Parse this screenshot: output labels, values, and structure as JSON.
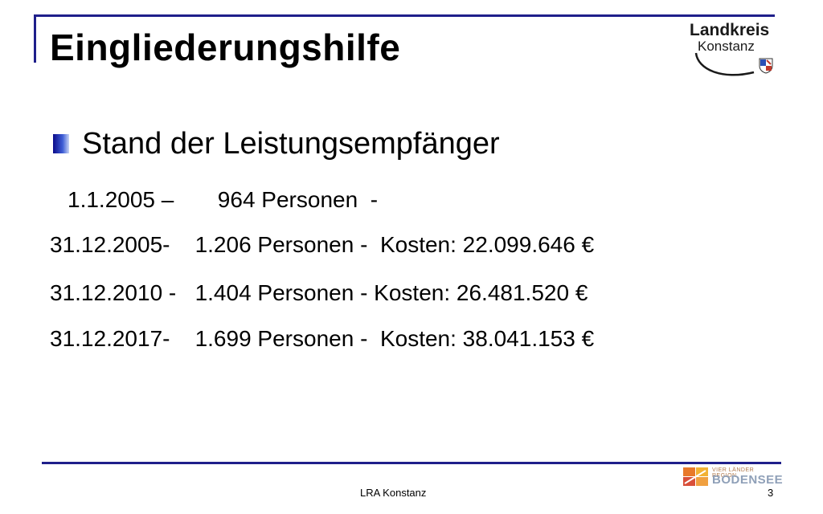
{
  "slide": {
    "title": "Eingliederungshilfe",
    "subheading": "Stand der Leistungsempfänger",
    "rows": [
      "1.1.2005 –       964 Personen  -",
      "31.12.2005-    1.206 Personen -  Kosten: 22.099.646 €",
      "31.12.2010 -   1.404 Personen - Kosten: 26.481.520 €",
      "31.12.2017-    1.699 Personen -  Kosten: 38.041.153 €"
    ]
  },
  "logo": {
    "line1": "Landkreis",
    "line2": "Konstanz"
  },
  "footer": {
    "text": "LRA Konstanz",
    "page_number": "3",
    "region_small": "VIER LÄNDER REGION",
    "region_big": "BODENSEE"
  },
  "colors": {
    "frame": "#1f1f8a",
    "bullet": "#2a3fbf"
  }
}
